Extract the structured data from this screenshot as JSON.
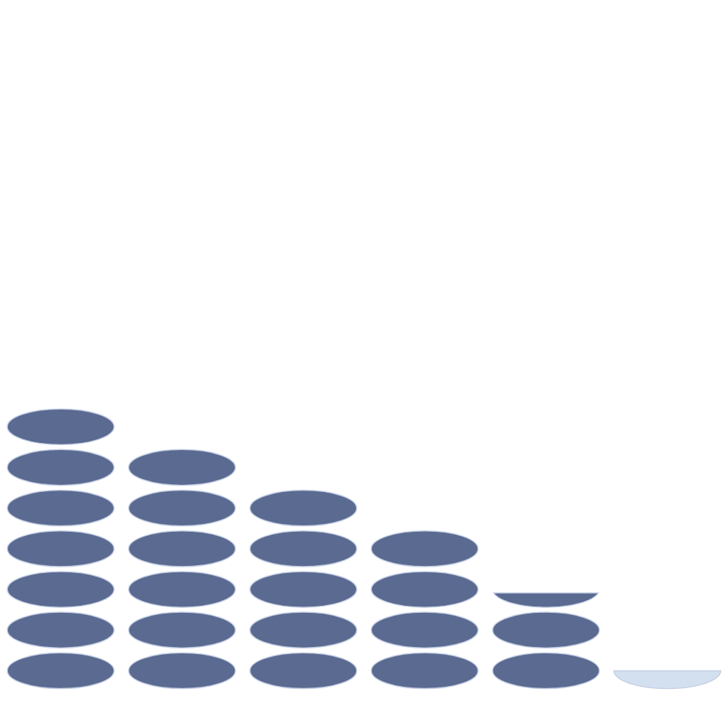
{
  "chart_data": {
    "type": "pictograph",
    "categories": [
      null,
      null,
      null,
      null,
      null,
      null
    ],
    "values": [
      7,
      6,
      5,
      4,
      2.4,
      0.5
    ],
    "colors": [
      "#5a6a90",
      "#5a6a90",
      "#5a6a90",
      "#5a6a90",
      "#5a6a90",
      "#d3e0f0"
    ],
    "ylim": [
      0,
      17
    ],
    "yticks": [],
    "grid": false,
    "tick_labels": false
  }
}
